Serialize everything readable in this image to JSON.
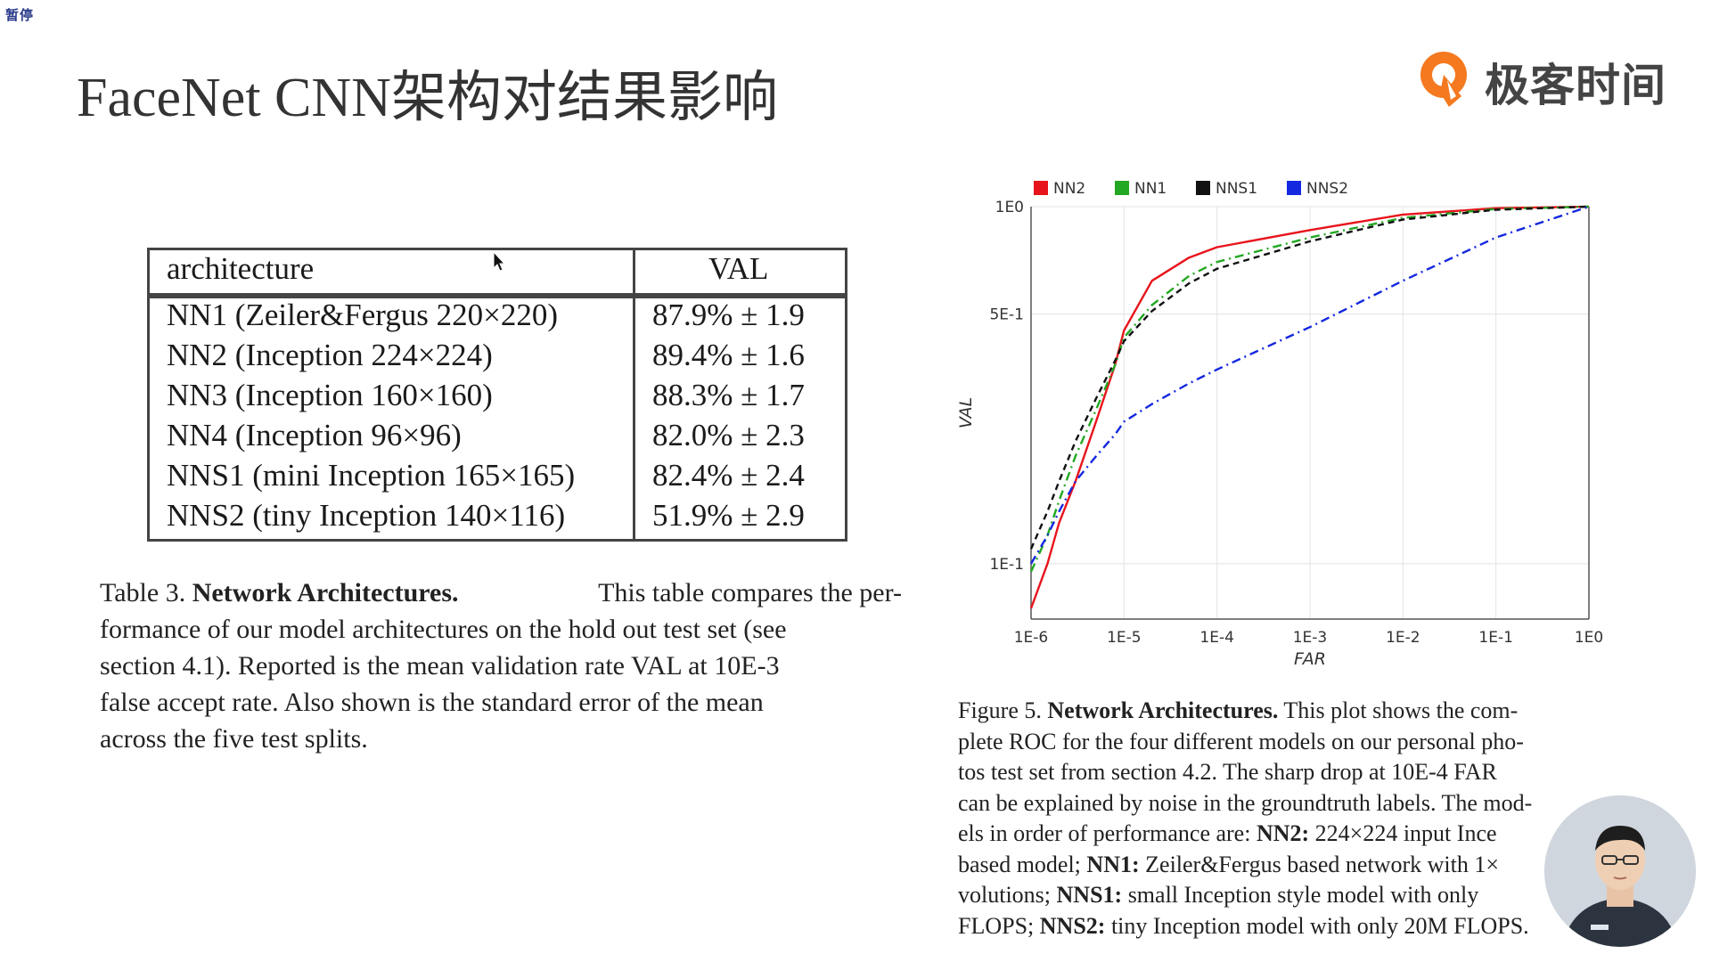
{
  "status_badge": "暂停",
  "slide": {
    "title": "FaceNet CNN架构对结果影响",
    "logo_text": "极客时间"
  },
  "table": {
    "headers": [
      "architecture",
      "VAL"
    ],
    "rows": [
      [
        "NN1 (Zeiler&Fergus 220×220)",
        "87.9% ± 1.9"
      ],
      [
        "NN2 (Inception 224×224)",
        "89.4% ± 1.6"
      ],
      [
        "NN3 (Inception 160×160)",
        "88.3% ± 1.7"
      ],
      [
        "NN4 (Inception 96×96)",
        "82.0% ± 2.3"
      ],
      [
        "NNS1 (mini Inception 165×165)",
        "82.4% ± 2.4"
      ],
      [
        "NNS2 (tiny Inception 140×116)",
        "51.9% ± 2.9"
      ]
    ]
  },
  "table_caption": {
    "prefix": "Table 3.",
    "bold": "Network Architectures.",
    "lines": [
      "This table compares the per-",
      "formance of our model architectures on the hold out test set (see",
      "section 4.1). Reported is the mean validation rate VAL at 10E-3",
      "false accept rate. Also shown is the standard error of the mean",
      "across the five test splits."
    ]
  },
  "figure_caption": {
    "prefix": "Figure 5.",
    "bold": "Network Architectures.",
    "lines": [
      "This plot shows the com-",
      "plete ROC for the four different models on our personal pho-",
      "tos test set from section 4.2. The sharp drop at 10E-4 FAR",
      "can be explained by noise in the groundtruth labels. The mod-",
      "els in order of performance are:",
      "224×224 input Ince",
      "based model;",
      "Zeiler&Fergus based network with 1×",
      "volutions;",
      "small Inception style model with only",
      "FLOPS;",
      "tiny Inception model with only 20M FLOPS."
    ],
    "bold_terms": [
      "NN2:",
      "NN1:",
      "NNS1:",
      "NNS2:"
    ]
  },
  "chart_data": {
    "type": "line",
    "xlabel": "FAR",
    "ylabel": "VAL",
    "x_scale": "log",
    "y_scale": "log",
    "x_ticks": [
      "1E-6",
      "1E-5",
      "1E-4",
      "1E-3",
      "1E-2",
      "1E-1",
      "1E0"
    ],
    "y_ticks": [
      "1E0",
      "5E-1",
      "1E-1"
    ],
    "xlim": [
      1e-06,
      1
    ],
    "ylim": [
      0.07,
      1
    ],
    "grid": true,
    "legend_placement": "top",
    "series": [
      {
        "name": "NN2",
        "color": "#e8141c",
        "style": "solid",
        "x": [
          1e-06,
          1.5e-06,
          2e-06,
          3e-06,
          5e-06,
          8e-06,
          1e-05,
          2e-05,
          5e-05,
          0.0001,
          0.001,
          0.01,
          0.1,
          1
        ],
        "y": [
          0.075,
          0.1,
          0.13,
          0.17,
          0.25,
          0.36,
          0.45,
          0.62,
          0.72,
          0.77,
          0.86,
          0.95,
          0.99,
          1.0
        ]
      },
      {
        "name": "NN1",
        "color": "#22a822",
        "style": "dashdot",
        "x": [
          1e-06,
          1.5e-06,
          2e-06,
          3e-06,
          5e-06,
          8e-06,
          1e-05,
          2e-05,
          5e-05,
          0.0001,
          0.001,
          0.01,
          0.1,
          1
        ],
        "y": [
          0.095,
          0.12,
          0.15,
          0.2,
          0.27,
          0.36,
          0.43,
          0.53,
          0.64,
          0.7,
          0.82,
          0.93,
          0.985,
          1.0
        ]
      },
      {
        "name": "NNS1",
        "color": "#111111",
        "style": "dashed",
        "x": [
          1e-06,
          1.5e-06,
          2e-06,
          3e-06,
          5e-06,
          8e-06,
          1e-05,
          2e-05,
          5e-05,
          0.0001,
          0.001,
          0.01,
          0.1,
          1
        ],
        "y": [
          0.11,
          0.14,
          0.17,
          0.22,
          0.29,
          0.37,
          0.42,
          0.51,
          0.61,
          0.67,
          0.8,
          0.92,
          0.98,
          1.0
        ]
      },
      {
        "name": "NNS2",
        "color": "#1428e0",
        "style": "dashdot",
        "x": [
          1e-06,
          1.5e-06,
          2e-06,
          3e-06,
          5e-06,
          8e-06,
          1e-05,
          2e-05,
          5e-05,
          0.0001,
          0.001,
          0.01,
          0.1,
          1
        ],
        "y": [
          0.1,
          0.12,
          0.14,
          0.17,
          0.2,
          0.23,
          0.25,
          0.28,
          0.32,
          0.35,
          0.46,
          0.62,
          0.82,
          1.0
        ]
      }
    ]
  }
}
